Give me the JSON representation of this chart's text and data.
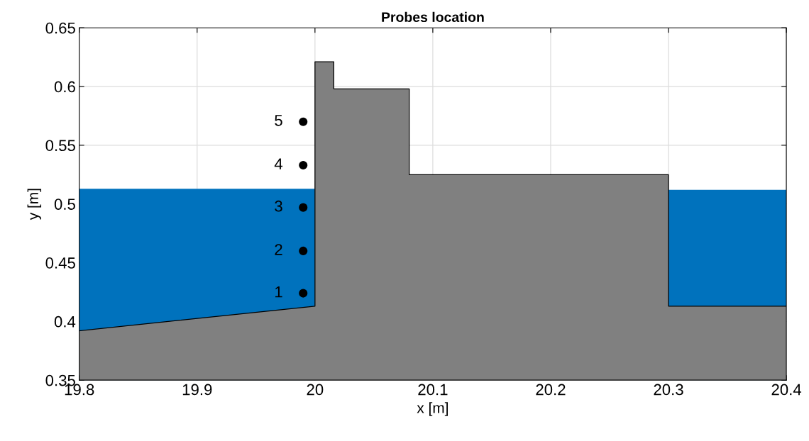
{
  "chart_data": {
    "type": "area",
    "title": "Probes location",
    "xlabel": "x [m]",
    "ylabel": "y [m]",
    "series": [
      {
        "type": "area",
        "color": "#0072bd",
        "x": [
          19.8,
          20.0
        ],
        "values": [
          0.513,
          0.513
        ]
      },
      {
        "type": "area",
        "color": "#0072bd",
        "x": [
          20.3,
          20.4
        ],
        "values": [
          0.512,
          0.512
        ]
      },
      {
        "type": "area",
        "color": "#808080",
        "x": [
          19.8,
          20.0,
          20.0,
          20.016,
          20.016,
          20.08,
          20.08,
          20.3,
          20.3,
          20.4
        ],
        "values": [
          0.392,
          0.413,
          0.621,
          0.621,
          0.598,
          0.598,
          0.525,
          0.525,
          0.413,
          0.413
        ]
      },
      {
        "type": "scatter",
        "name": "1",
        "color": "#000000",
        "marker": "circle",
        "x": [
          19.99
        ],
        "values": [
          0.424
        ]
      },
      {
        "type": "scatter",
        "name": "2",
        "color": "#000000",
        "marker": "circle",
        "x": [
          19.99
        ],
        "values": [
          0.46
        ]
      },
      {
        "type": "scatter",
        "name": "3",
        "color": "#000000",
        "marker": "circle",
        "x": [
          19.99
        ],
        "values": [
          0.497
        ]
      },
      {
        "type": "scatter",
        "name": "4",
        "color": "#000000",
        "marker": "circle",
        "x": [
          19.99
        ],
        "values": [
          0.533
        ]
      },
      {
        "type": "scatter",
        "name": "5",
        "color": "#000000",
        "marker": "circle",
        "x": [
          19.99
        ],
        "values": [
          0.57
        ]
      }
    ],
    "xlim": [
      19.8,
      20.4
    ],
    "xticks": [
      19.8,
      19.9,
      20,
      20.1,
      20.2,
      20.3,
      20.4
    ],
    "ylim": [
      0.35,
      0.65
    ],
    "yticks": [
      0.35,
      0.4,
      0.45,
      0.5,
      0.55,
      0.6,
      0.65
    ],
    "grid": true
  }
}
